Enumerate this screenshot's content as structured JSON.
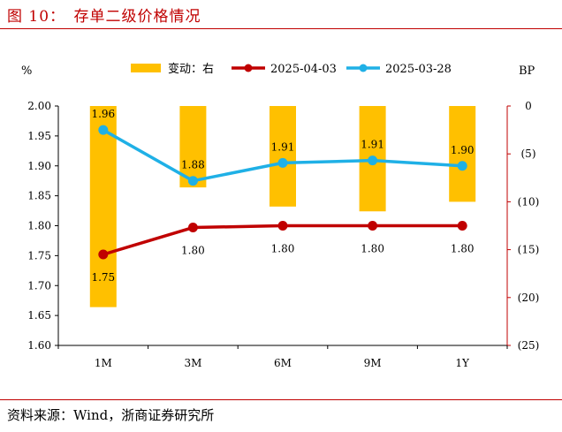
{
  "figure": {
    "title": "图 10：　存单二级价格情况",
    "source": "资料来源：Wind，浙商证券研究所"
  },
  "chart_data": {
    "type": "bar+line",
    "categories": [
      "1M",
      "3M",
      "6M",
      "9M",
      "1Y"
    ],
    "left_axis": {
      "label": "%",
      "ylim": [
        1.6,
        2.0
      ],
      "ticks": [
        "1.60",
        "1.65",
        "1.70",
        "1.75",
        "1.80",
        "1.85",
        "1.90",
        "1.95",
        "2.00"
      ]
    },
    "right_axis": {
      "label": "BP",
      "ylim": [
        -25,
        0
      ],
      "ticks": [
        "0",
        "(5)",
        "(10)",
        "(15)",
        "(20)",
        "(25)"
      ]
    },
    "legend_placement": "top",
    "grid": false,
    "bars": {
      "name": "变动：右",
      "color": "#FFC000",
      "values": [
        -21,
        -8.5,
        -10.5,
        -11,
        -10
      ]
    },
    "series": [
      {
        "name": "2025-04-03",
        "color": "#C00000",
        "values": [
          1.752,
          1.797,
          1.8,
          1.8,
          1.8
        ],
        "labels": [
          "1.75",
          "1.80",
          "1.80",
          "1.80",
          "1.80"
        ]
      },
      {
        "name": "2025-03-28",
        "color": "#1FB0E6",
        "values": [
          1.96,
          1.875,
          1.905,
          1.909,
          1.9
        ],
        "labels": [
          "1.96",
          "1.88",
          "1.91",
          "1.91",
          "1.90"
        ]
      }
    ]
  }
}
